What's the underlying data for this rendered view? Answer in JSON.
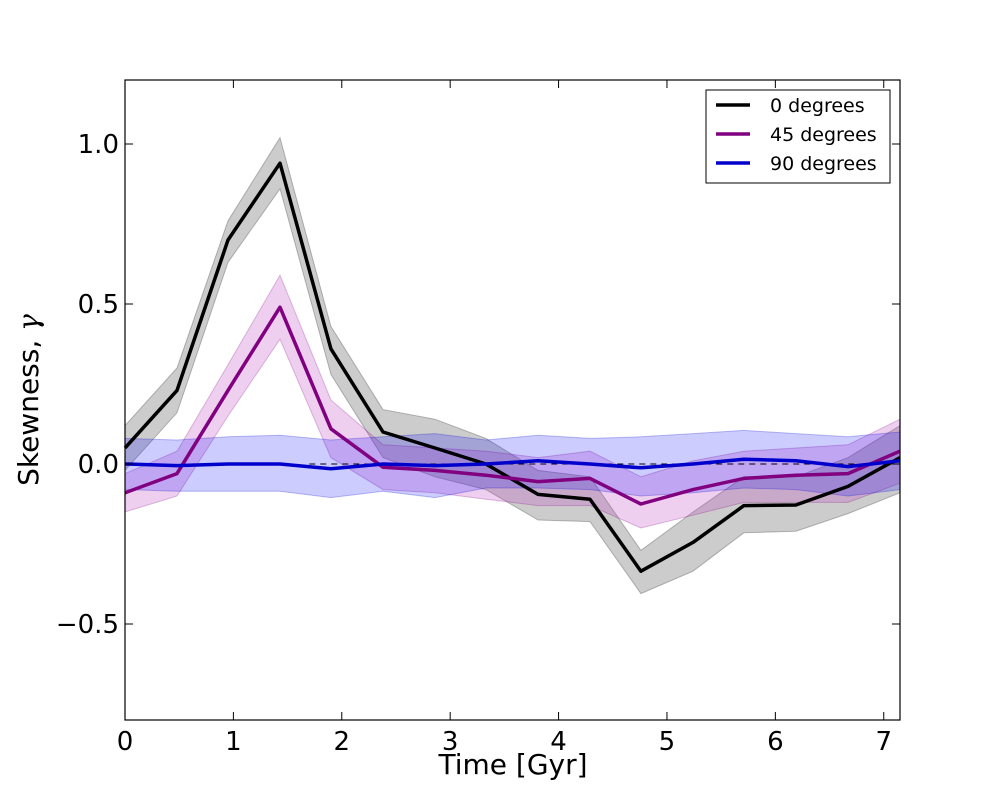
{
  "chart_data": {
    "type": "line",
    "xlabel": "Time [Gyr]",
    "ylabel": "Skewness, ",
    "ylabel_symbol": "γ",
    "xlim": [
      0,
      7.15
    ],
    "ylim": [
      -0.8,
      1.2
    ],
    "xticks": [
      0,
      1,
      2,
      3,
      4,
      5,
      6,
      7
    ],
    "xtick_labels": [
      "0",
      "1",
      "2",
      "3",
      "4",
      "5",
      "6",
      "7"
    ],
    "yticks": [
      -0.5,
      0.0,
      0.5,
      1.0
    ],
    "ytick_labels": [
      "−0.5",
      "0.0",
      "0.5",
      "1.0"
    ],
    "reference_line": {
      "y": 0.0,
      "x_range": [
        1.7,
        7.15
      ],
      "style": "dashed",
      "color": "#000000"
    },
    "x": [
      0.0,
      0.48,
      0.95,
      1.43,
      1.9,
      2.38,
      2.86,
      3.33,
      3.81,
      4.29,
      4.76,
      5.24,
      5.71,
      6.19,
      6.67,
      7.15
    ],
    "series": [
      {
        "name": "0 degrees",
        "color": "#000000",
        "fill_color": "#000000",
        "fill_opacity": 0.2,
        "values": [
          0.05,
          0.23,
          0.7,
          0.94,
          0.36,
          0.1,
          0.05,
          0.0,
          -0.095,
          -0.11,
          -0.335,
          -0.245,
          -0.13,
          -0.128,
          -0.07,
          0.02
        ],
        "upper": [
          0.12,
          0.3,
          0.76,
          1.02,
          0.43,
          0.17,
          0.14,
          0.08,
          -0.02,
          -0.04,
          -0.27,
          -0.15,
          -0.04,
          -0.04,
          0.02,
          0.12
        ],
        "lower": [
          -0.02,
          0.16,
          0.63,
          0.86,
          0.28,
          0.02,
          -0.04,
          -0.08,
          -0.175,
          -0.18,
          -0.405,
          -0.335,
          -0.215,
          -0.21,
          -0.155,
          -0.09
        ]
      },
      {
        "name": "45 degrees",
        "color": "#800080",
        "fill_color": "#bf3fbf",
        "fill_opacity": 0.25,
        "values": [
          -0.09,
          -0.03,
          0.23,
          0.49,
          0.11,
          -0.01,
          -0.02,
          -0.035,
          -0.055,
          -0.045,
          -0.125,
          -0.08,
          -0.045,
          -0.035,
          -0.03,
          0.04
        ],
        "upper": [
          -0.03,
          0.04,
          0.31,
          0.59,
          0.2,
          0.06,
          0.05,
          0.04,
          0.02,
          0.04,
          -0.04,
          0.01,
          0.04,
          0.05,
          0.06,
          0.14
        ],
        "lower": [
          -0.15,
          -0.1,
          0.15,
          0.39,
          0.02,
          -0.08,
          -0.09,
          -0.11,
          -0.13,
          -0.13,
          -0.2,
          -0.16,
          -0.12,
          -0.12,
          -0.12,
          -0.06
        ]
      },
      {
        "name": "90 degrees",
        "color": "#0000cc",
        "fill_color": "#0000ff",
        "fill_opacity": 0.2,
        "values": [
          0.0,
          -0.005,
          0.0,
          0.0,
          -0.015,
          0.0,
          -0.005,
          0.0,
          0.01,
          0.0,
          -0.012,
          0.0,
          0.015,
          0.01,
          -0.008,
          0.01
        ],
        "upper": [
          0.08,
          0.075,
          0.085,
          0.09,
          0.075,
          0.085,
          0.095,
          0.075,
          0.09,
          0.08,
          0.085,
          0.095,
          0.105,
          0.095,
          0.085,
          0.1
        ],
        "lower": [
          -0.08,
          -0.085,
          -0.085,
          -0.085,
          -0.105,
          -0.085,
          -0.105,
          -0.075,
          -0.075,
          -0.08,
          -0.1,
          -0.09,
          -0.075,
          -0.08,
          -0.1,
          -0.08
        ]
      }
    ],
    "legend": {
      "position": "top-right"
    }
  }
}
